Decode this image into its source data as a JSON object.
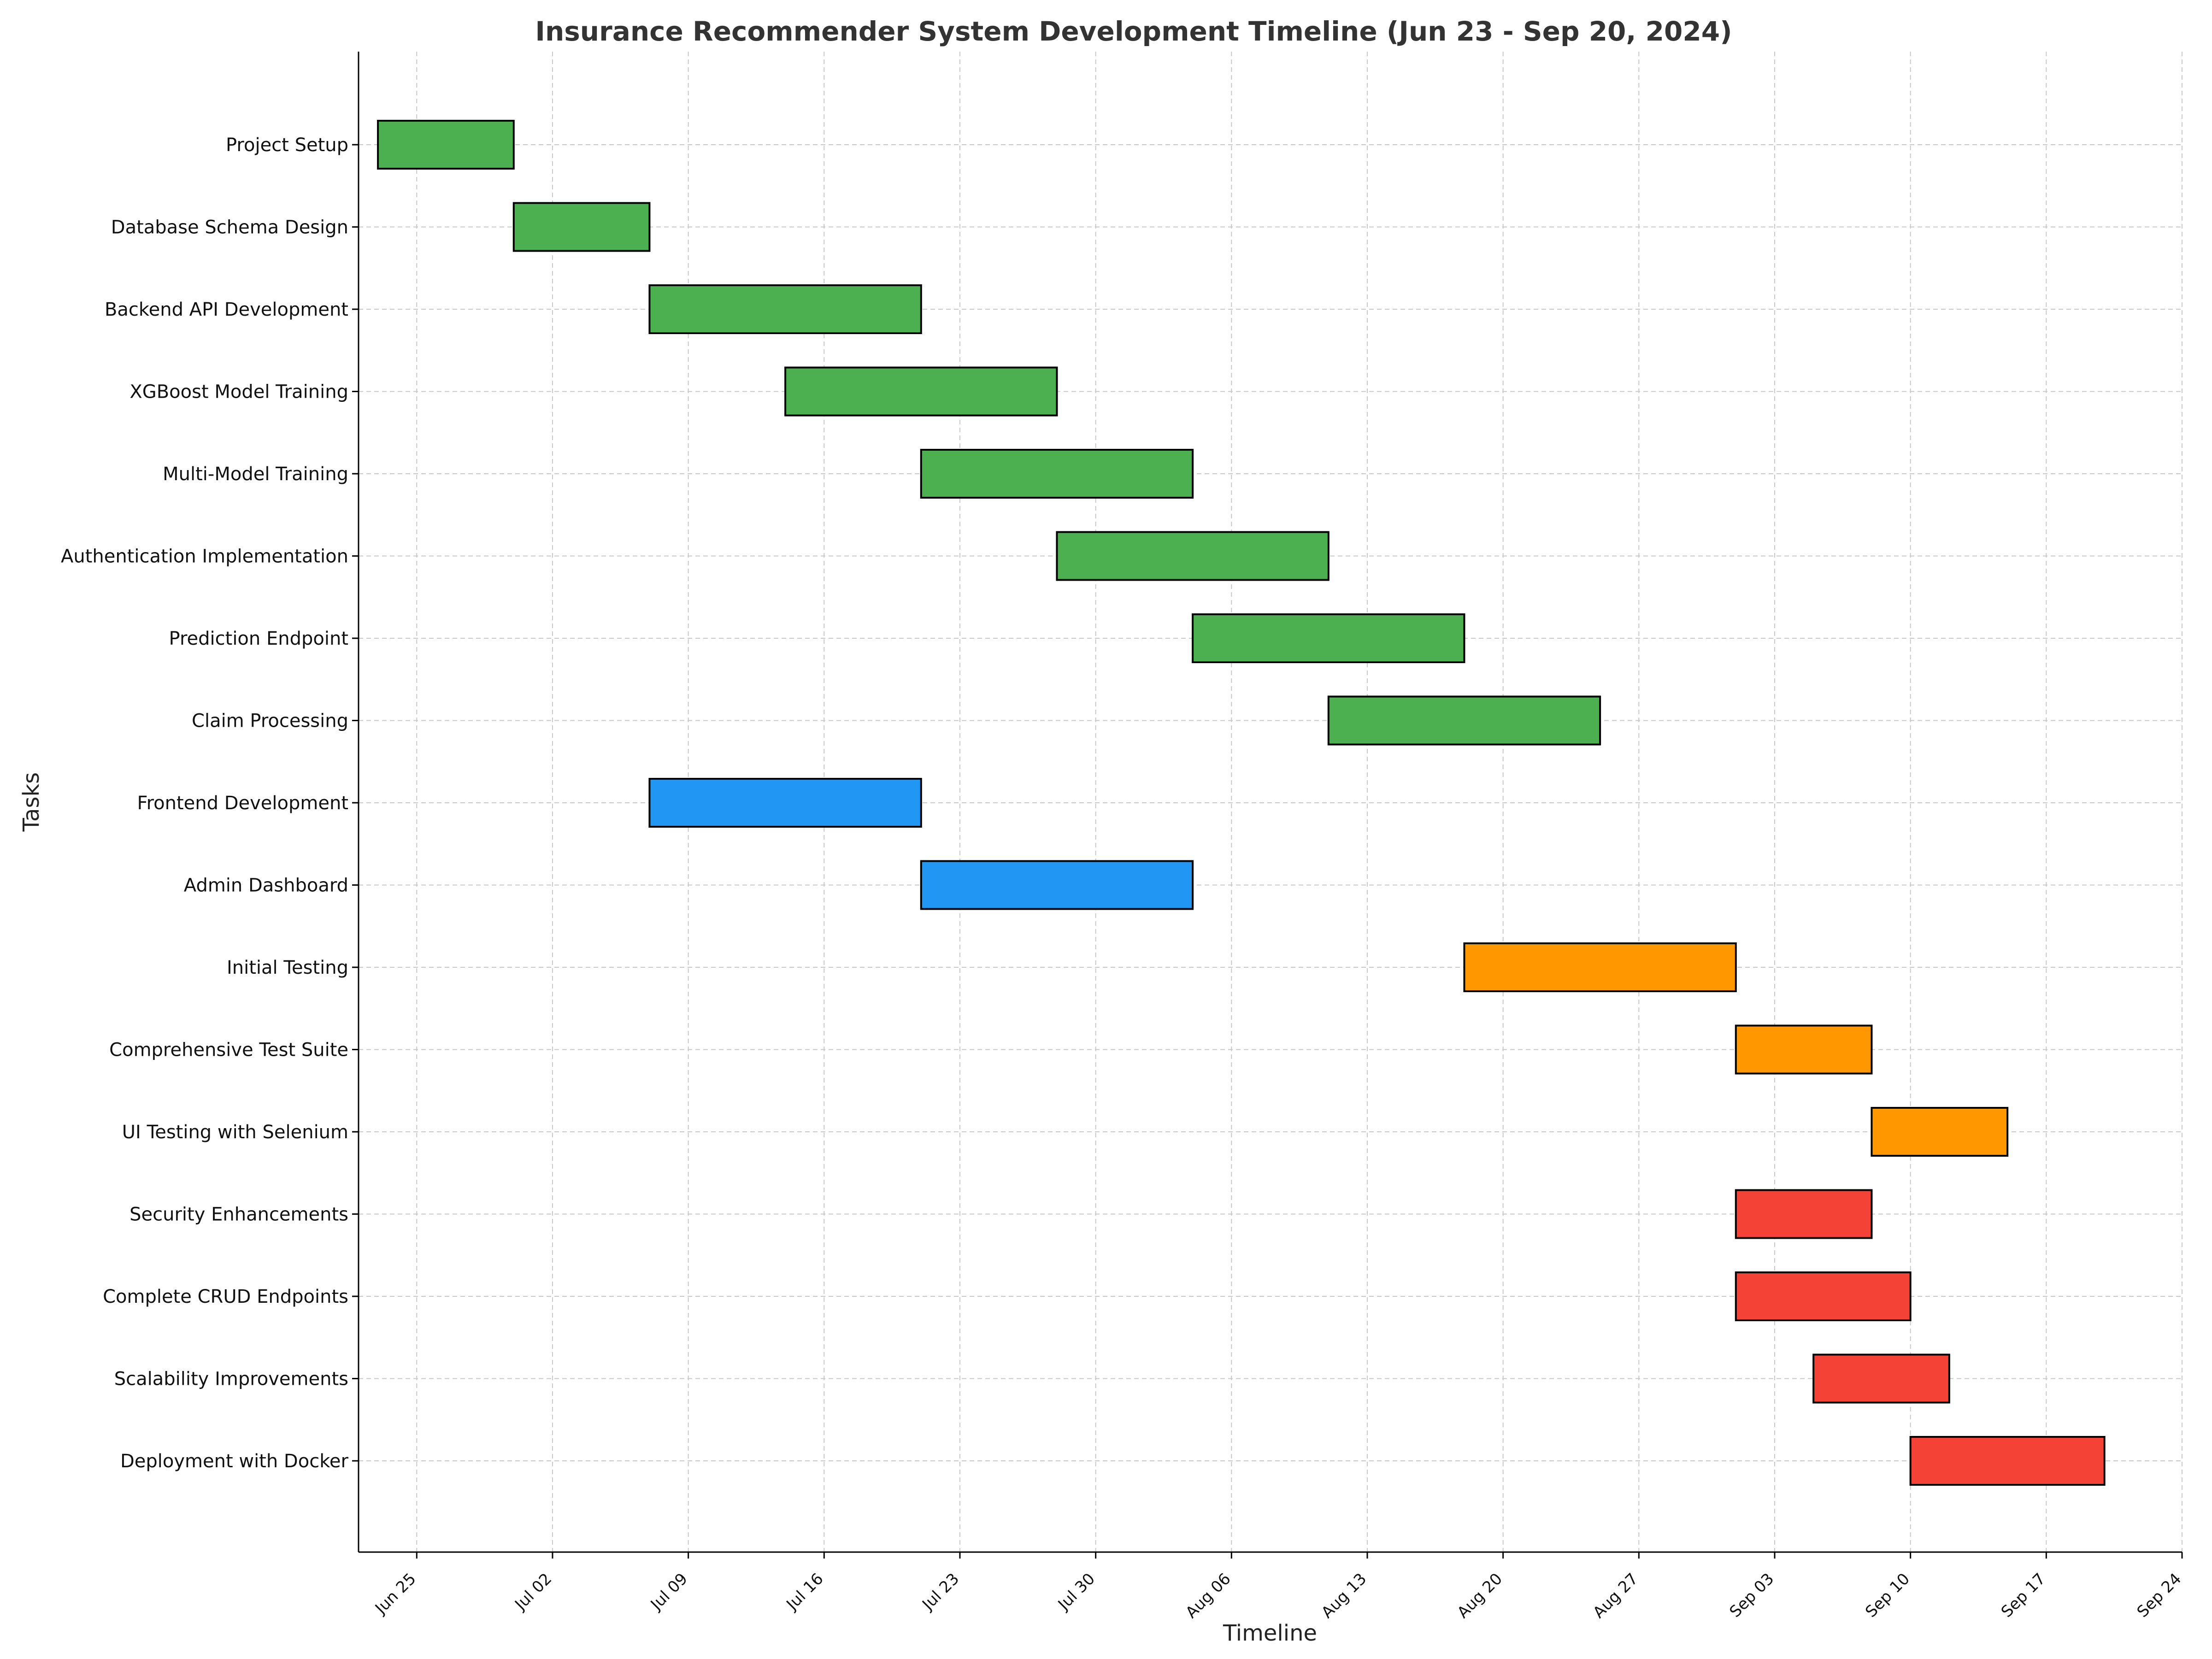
{
  "chart_data": {
    "type": "gantt",
    "title": "Insurance Recommender System Development Timeline (Jun 23 - Sep 20, 2024)",
    "xlabel": "Timeline",
    "ylabel": "Tasks",
    "x_range": [
      "2024-06-22",
      "2024-09-24"
    ],
    "x_ticks": [
      {
        "date": "2024-06-25",
        "label": "Jun 25"
      },
      {
        "date": "2024-07-02",
        "label": "Jul 02"
      },
      {
        "date": "2024-07-09",
        "label": "Jul 09"
      },
      {
        "date": "2024-07-16",
        "label": "Jul 16"
      },
      {
        "date": "2024-07-23",
        "label": "Jul 23"
      },
      {
        "date": "2024-07-30",
        "label": "Jul 30"
      },
      {
        "date": "2024-08-06",
        "label": "Aug 06"
      },
      {
        "date": "2024-08-13",
        "label": "Aug 13"
      },
      {
        "date": "2024-08-20",
        "label": "Aug 20"
      },
      {
        "date": "2024-08-27",
        "label": "Aug 27"
      },
      {
        "date": "2024-09-03",
        "label": "Sep 03"
      },
      {
        "date": "2024-09-10",
        "label": "Sep 10"
      },
      {
        "date": "2024-09-17",
        "label": "Sep 17"
      },
      {
        "date": "2024-09-24",
        "label": "Sep 24"
      }
    ],
    "grid": true,
    "tasks": [
      {
        "name": "Project Setup",
        "start": "2024-06-23",
        "end": "2024-06-30",
        "color": "#4CAF50"
      },
      {
        "name": "Database Schema Design",
        "start": "2024-06-30",
        "end": "2024-07-07",
        "color": "#4CAF50"
      },
      {
        "name": "Backend API Development",
        "start": "2024-07-07",
        "end": "2024-07-21",
        "color": "#4CAF50"
      },
      {
        "name": "XGBoost Model Training",
        "start": "2024-07-14",
        "end": "2024-07-28",
        "color": "#4CAF50"
      },
      {
        "name": "Multi-Model Training",
        "start": "2024-07-21",
        "end": "2024-08-04",
        "color": "#4CAF50"
      },
      {
        "name": "Authentication Implementation",
        "start": "2024-07-28",
        "end": "2024-08-11",
        "color": "#4CAF50"
      },
      {
        "name": "Prediction Endpoint",
        "start": "2024-08-04",
        "end": "2024-08-18",
        "color": "#4CAF50"
      },
      {
        "name": "Claim Processing",
        "start": "2024-08-11",
        "end": "2024-08-25",
        "color": "#4CAF50"
      },
      {
        "name": "Frontend Development",
        "start": "2024-07-07",
        "end": "2024-07-21",
        "color": "#2196F3"
      },
      {
        "name": "Admin Dashboard",
        "start": "2024-07-21",
        "end": "2024-08-04",
        "color": "#2196F3"
      },
      {
        "name": "Initial Testing",
        "start": "2024-08-18",
        "end": "2024-09-01",
        "color": "#FF9800"
      },
      {
        "name": "Comprehensive Test Suite",
        "start": "2024-09-01",
        "end": "2024-09-08",
        "color": "#FF9800"
      },
      {
        "name": "UI Testing with Selenium",
        "start": "2024-09-08",
        "end": "2024-09-15",
        "color": "#FF9800"
      },
      {
        "name": "Security Enhancements",
        "start": "2024-09-01",
        "end": "2024-09-08",
        "color": "#F44336"
      },
      {
        "name": "Complete CRUD Endpoints",
        "start": "2024-09-01",
        "end": "2024-09-10",
        "color": "#F44336"
      },
      {
        "name": "Scalability Improvements",
        "start": "2024-09-05",
        "end": "2024-09-12",
        "color": "#F44336"
      },
      {
        "name": "Deployment with Docker",
        "start": "2024-09-10",
        "end": "2024-09-20",
        "color": "#F44336"
      }
    ]
  }
}
